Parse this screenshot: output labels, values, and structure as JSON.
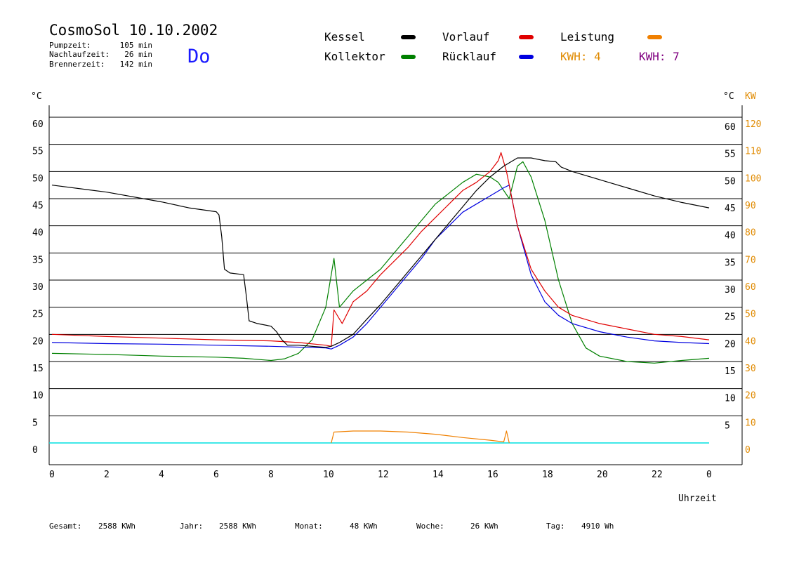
{
  "header": {
    "title": "CosmoSol 10.10.2002",
    "day": "Do",
    "info": [
      {
        "label": "Pumpzeit:",
        "value": "105 min"
      },
      {
        "label": "Nachlaufzeit:",
        "value": "26 min"
      },
      {
        "label": "Brennerzeit:",
        "value": "142 min"
      }
    ]
  },
  "legend": [
    {
      "name": "Kessel",
      "color": "#000000"
    },
    {
      "name": "Vorlauf",
      "color": "#e00000"
    },
    {
      "name": "Leistung",
      "color": "#f08000"
    },
    {
      "name": "Kollektor",
      "color": "#008000"
    },
    {
      "name": "Rücklauf",
      "color": "#0000e0"
    }
  ],
  "kwh": [
    {
      "text": "KWH: 4",
      "color": "#e08a00"
    },
    {
      "text": "KWH: 7",
      "color": "#800080"
    }
  ],
  "axes": {
    "left_unit": "°C",
    "right_unit_c": "°C",
    "right_unit_kw": "KW",
    "xlabel": "Uhrzeit"
  },
  "footer": [
    {
      "label": "Gesamt:",
      "value": "2588 KWh"
    },
    {
      "label": "Jahr:",
      "value": "2588 KWh"
    },
    {
      "label": "Monat:",
      "value": "48 KWh"
    },
    {
      "label": "Woche:",
      "value": "26 KWh"
    },
    {
      "label": "Tag:",
      "value": "4910 Wh"
    }
  ],
  "chart_data": {
    "type": "line",
    "xlim": [
      0,
      24
    ],
    "ylim": [
      0,
      60
    ],
    "y2lim": [
      0,
      120
    ],
    "grid": true,
    "x_ticks": [
      "0",
      "2",
      "4",
      "6",
      "8",
      "10",
      "12",
      "14",
      "16",
      "18",
      "20",
      "22",
      "0"
    ],
    "y_ticks_left": [
      "0",
      "5",
      "10",
      "15",
      "20",
      "25",
      "30",
      "35",
      "40",
      "45",
      "50",
      "55",
      "60"
    ],
    "y_ticks_right_c": [
      "5",
      "10",
      "15",
      "20",
      "25",
      "30",
      "35",
      "40",
      "45",
      "50",
      "55",
      "60"
    ],
    "y_ticks_right_kw": [
      "0",
      "10",
      "20",
      "30",
      "40",
      "50",
      "60",
      "70",
      "80",
      "90",
      "100",
      "110",
      "120"
    ],
    "series": [
      {
        "name": "Kessel",
        "color": "#000000",
        "points": [
          [
            0,
            47.5
          ],
          [
            2,
            46.2
          ],
          [
            4,
            44.4
          ],
          [
            5,
            43.3
          ],
          [
            6,
            42.6
          ],
          [
            6.1,
            42.0
          ],
          [
            6.2,
            38
          ],
          [
            6.3,
            32
          ],
          [
            6.5,
            31.3
          ],
          [
            7,
            31
          ],
          [
            7.1,
            27
          ],
          [
            7.2,
            22.5
          ],
          [
            7.5,
            22
          ],
          [
            8,
            21.5
          ],
          [
            8.2,
            20.5
          ],
          [
            8.4,
            19
          ],
          [
            8.6,
            18
          ],
          [
            9,
            18
          ],
          [
            10,
            17.6
          ],
          [
            10.2,
            17.8
          ],
          [
            10.5,
            18.5
          ],
          [
            11,
            20
          ],
          [
            11.5,
            22.8
          ],
          [
            12,
            25.5
          ],
          [
            12.5,
            28.5
          ],
          [
            13,
            31.5
          ],
          [
            13.5,
            34.5
          ],
          [
            14,
            37.5
          ],
          [
            14.5,
            40.5
          ],
          [
            15,
            43.5
          ],
          [
            15.5,
            46.5
          ],
          [
            16,
            49
          ],
          [
            16.5,
            51
          ],
          [
            17,
            52.5
          ],
          [
            17.5,
            52.5
          ],
          [
            18,
            52
          ],
          [
            18.4,
            51.8
          ],
          [
            18.6,
            50.8
          ],
          [
            19,
            50
          ],
          [
            20,
            48.5
          ],
          [
            21,
            47
          ],
          [
            22,
            45.5
          ],
          [
            23,
            44.3
          ],
          [
            24,
            43.3
          ]
        ]
      },
      {
        "name": "Vorlauf",
        "color": "#e00000",
        "points": [
          [
            0,
            20
          ],
          [
            2,
            19.6
          ],
          [
            4,
            19.3
          ],
          [
            6,
            19
          ],
          [
            8,
            18.8
          ],
          [
            9,
            18.5
          ],
          [
            10,
            18
          ],
          [
            10.2,
            17.8
          ],
          [
            10.3,
            24.5
          ],
          [
            10.6,
            22
          ],
          [
            11,
            26
          ],
          [
            11.5,
            28
          ],
          [
            12,
            31
          ],
          [
            12.5,
            33.5
          ],
          [
            13,
            36
          ],
          [
            13.5,
            39
          ],
          [
            14,
            41.5
          ],
          [
            14.5,
            44
          ],
          [
            15,
            46.5
          ],
          [
            15.5,
            48
          ],
          [
            16,
            50
          ],
          [
            16.3,
            52
          ],
          [
            16.4,
            53.5
          ],
          [
            16.6,
            50
          ],
          [
            17,
            40
          ],
          [
            17.5,
            32
          ],
          [
            18,
            28
          ],
          [
            18.5,
            25
          ],
          [
            19,
            23.5
          ],
          [
            20,
            22
          ],
          [
            21,
            21
          ],
          [
            22,
            20
          ],
          [
            23,
            19.6
          ],
          [
            24,
            19
          ]
        ]
      },
      {
        "name": "Rücklauf",
        "color": "#0000e0",
        "points": [
          [
            0,
            18.5
          ],
          [
            2,
            18.3
          ],
          [
            4,
            18.2
          ],
          [
            6,
            18
          ],
          [
            8,
            17.8
          ],
          [
            10,
            17.5
          ],
          [
            10.2,
            17.3
          ],
          [
            10.5,
            18
          ],
          [
            11,
            19.5
          ],
          [
            11.5,
            22
          ],
          [
            12,
            25
          ],
          [
            12.5,
            28
          ],
          [
            13,
            31
          ],
          [
            13.5,
            34
          ],
          [
            14,
            37.5
          ],
          [
            14.5,
            40
          ],
          [
            15,
            42.5
          ],
          [
            15.5,
            44
          ],
          [
            16,
            45.5
          ],
          [
            16.5,
            47
          ],
          [
            16.7,
            47.5
          ],
          [
            17,
            40
          ],
          [
            17.5,
            31
          ],
          [
            18,
            26
          ],
          [
            18.5,
            23.5
          ],
          [
            19,
            22
          ],
          [
            20,
            20.5
          ],
          [
            21,
            19.5
          ],
          [
            22,
            18.8
          ],
          [
            23,
            18.5
          ],
          [
            24,
            18.3
          ]
        ]
      },
      {
        "name": "Kollektor",
        "color": "#008000",
        "points": [
          [
            0,
            16.5
          ],
          [
            2,
            16.3
          ],
          [
            4,
            16
          ],
          [
            6,
            15.8
          ],
          [
            7,
            15.6
          ],
          [
            8,
            15.2
          ],
          [
            8.5,
            15.5
          ],
          [
            9,
            16.5
          ],
          [
            9.5,
            19
          ],
          [
            10,
            25
          ],
          [
            10.3,
            34
          ],
          [
            10.5,
            25
          ],
          [
            11,
            28
          ],
          [
            11.5,
            30
          ],
          [
            12,
            32
          ],
          [
            12.5,
            35
          ],
          [
            13,
            38
          ],
          [
            13.5,
            41
          ],
          [
            14,
            44
          ],
          [
            14.5,
            46
          ],
          [
            15,
            48
          ],
          [
            15.5,
            49.5
          ],
          [
            16,
            49
          ],
          [
            16.3,
            48
          ],
          [
            16.7,
            45
          ],
          [
            17,
            51
          ],
          [
            17.2,
            51.8
          ],
          [
            17.5,
            49
          ],
          [
            18,
            41
          ],
          [
            18.5,
            30
          ],
          [
            19,
            22
          ],
          [
            19.5,
            17.5
          ],
          [
            20,
            16
          ],
          [
            21,
            15
          ],
          [
            22,
            14.7
          ],
          [
            23,
            15.2
          ],
          [
            24,
            15.6
          ]
        ]
      },
      {
        "name": "Leistung",
        "color": "#f08000",
        "points": [
          [
            10.2,
            0
          ],
          [
            10.3,
            2
          ],
          [
            11,
            2.2
          ],
          [
            12,
            2.2
          ],
          [
            13,
            2
          ],
          [
            14,
            1.6
          ],
          [
            15,
            1
          ],
          [
            16,
            0.5
          ],
          [
            16.5,
            0.2
          ],
          [
            16.6,
            2.2
          ],
          [
            16.7,
            0
          ]
        ]
      }
    ]
  }
}
